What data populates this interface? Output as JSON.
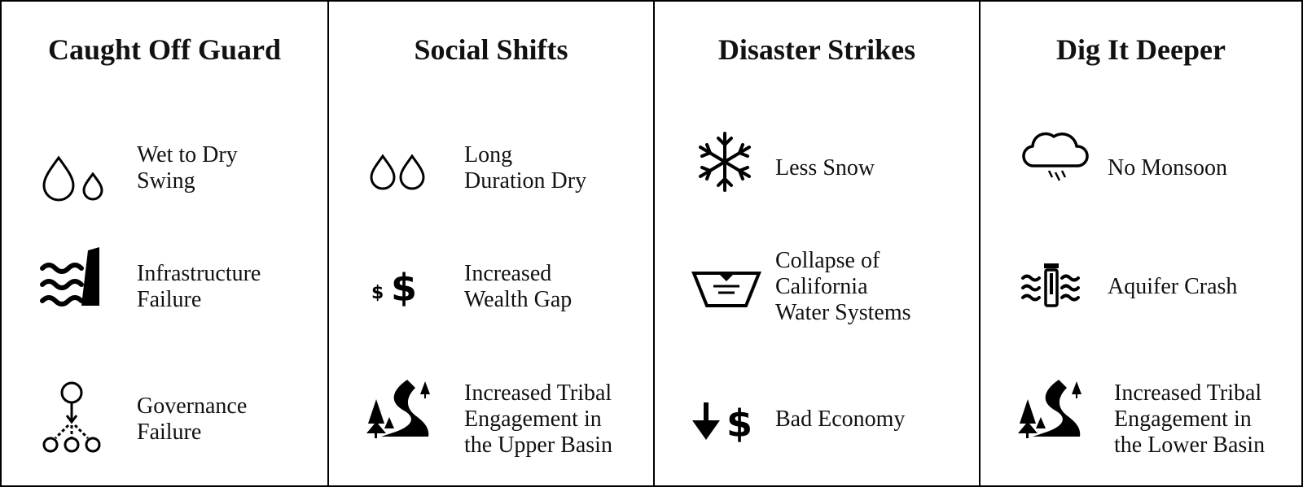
{
  "columns": [
    {
      "title": "Caught Off Guard",
      "items": [
        {
          "icon": "two-drops-icon",
          "label": "Wet to Dry\nSwing"
        },
        {
          "icon": "dam-waves-icon",
          "label": "Infrastructure\nFailure"
        },
        {
          "icon": "hierarchy-icon",
          "label": "Governance\nFailure"
        }
      ]
    },
    {
      "title": "Social Shifts",
      "items": [
        {
          "icon": "two-drops-icon",
          "label": "Long\nDuration Dry"
        },
        {
          "icon": "dollar-signs-icon",
          "label": "Increased\nWealth Gap"
        },
        {
          "icon": "river-trees-icon",
          "label": "Increased Tribal\nEngagement in\nthe Upper Basin"
        }
      ]
    },
    {
      "title": "Disaster Strikes",
      "items": [
        {
          "icon": "snowflake-icon",
          "label": "Less Snow"
        },
        {
          "icon": "reservoir-icon",
          "label": "Collapse of\nCalifornia\nWater Systems"
        },
        {
          "icon": "down-dollar-icon",
          "label": "Bad Economy"
        }
      ]
    },
    {
      "title": "Dig It Deeper",
      "items": [
        {
          "icon": "rain-cloud-icon",
          "label": "No Monsoon"
        },
        {
          "icon": "aquifer-well-icon",
          "label": "Aquifer Crash"
        },
        {
          "icon": "river-trees-icon",
          "label": "Increased Tribal\nEngagement in\nthe Lower Basin"
        }
      ]
    }
  ]
}
